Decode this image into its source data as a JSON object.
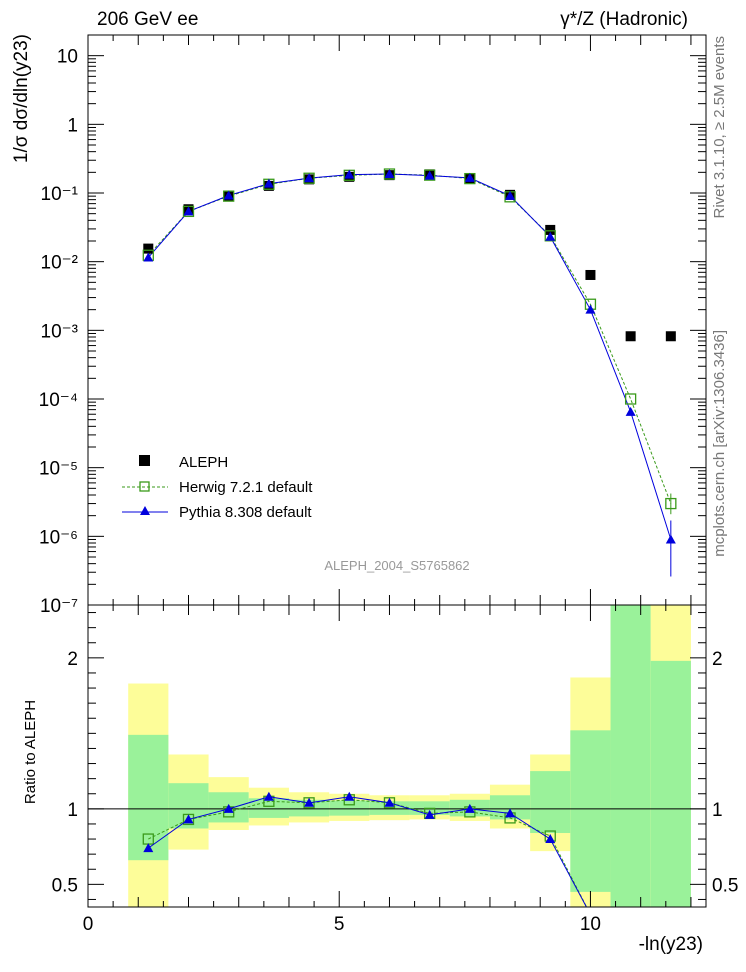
{
  "header": {
    "left": "206 GeV ee",
    "right": "γ*/Z (Hadronic)"
  },
  "side": {
    "top": "Rivet 3.1.10, ≥ 2.5M events",
    "bottom": "mcplots.cern.ch [arXiv:1306.3436]"
  },
  "watermark": "ALEPH_2004_S5765862",
  "chart_data": [
    {
      "type": "scatter",
      "title": "",
      "ylabel": "1/σ  dσ/dln(y23)",
      "xlabel": "-ln(y23)",
      "xlim": [
        0,
        12.3
      ],
      "ylim": [
        1e-07,
        20
      ],
      "yscale": "log",
      "y_tick_labels": [
        "10⁻⁷",
        "10⁻⁶",
        "10⁻⁵",
        "10⁻⁴",
        "10⁻³",
        "10⁻²",
        "10⁻¹",
        "1",
        "10"
      ],
      "legend_position": "lower-left",
      "x": [
        1.2,
        2.0,
        2.8,
        3.6,
        4.4,
        5.2,
        6.0,
        6.8,
        7.6,
        8.4,
        9.2,
        10.0,
        10.8,
        11.6
      ],
      "series": [
        {
          "name": "ALEPH",
          "marker": "filled-square",
          "color": "#000000",
          "values": [
            0.0155,
            0.058,
            0.092,
            0.127,
            0.158,
            0.172,
            0.182,
            0.187,
            0.165,
            0.094,
            0.029,
            0.0064,
            0.00082,
            0.00082
          ]
        },
        {
          "name": "Herwig 7.2.1 default",
          "marker": "open-square",
          "line": "dashed",
          "color": "#3a9a1a",
          "values": [
            0.0124,
            0.054,
            0.09,
            0.134,
            0.164,
            0.181,
            0.189,
            0.182,
            0.162,
            0.088,
            0.0238,
            0.0024,
            0.0001,
            3e-06
          ]
        },
        {
          "name": "Pythia 8.308 default",
          "marker": "filled-triangle",
          "line": "solid",
          "color": "#0000dd",
          "values": [
            0.0115,
            0.054,
            0.092,
            0.137,
            0.165,
            0.185,
            0.189,
            0.179,
            0.166,
            0.091,
            0.0231,
            0.002,
            6.5e-05,
            9e-07
          ]
        }
      ]
    },
    {
      "type": "line",
      "ylabel": "Ratio to ALEPH",
      "xlabel": "-ln(y23)",
      "xlim": [
        0,
        12.3
      ],
      "ylim": [
        0.35,
        2.35
      ],
      "x_tick_labels": [
        "0",
        "5",
        "10"
      ],
      "y_tick_labels": [
        "0.5",
        "1",
        "2"
      ],
      "bands": {
        "edges": [
          0.8,
          1.6,
          2.4,
          3.2,
          4.0,
          4.8,
          5.6,
          6.4,
          7.2,
          8.0,
          8.8,
          9.6,
          10.4,
          11.2,
          12.0
        ],
        "inner": [
          [
            0.66,
            1.49
          ],
          [
            0.87,
            1.17
          ],
          [
            0.91,
            1.11
          ],
          [
            0.94,
            1.07
          ],
          [
            0.95,
            1.06
          ],
          [
            0.955,
            1.055
          ],
          [
            0.96,
            1.05
          ],
          [
            0.96,
            1.05
          ],
          [
            0.95,
            1.06
          ],
          [
            0.93,
            1.09
          ],
          [
            0.84,
            1.25
          ],
          [
            0.45,
            1.52
          ],
          [
            0.3,
            2.4
          ],
          [
            0.3,
            1.98
          ]
        ],
        "outer": [
          [
            0.3,
            1.83
          ],
          [
            0.73,
            1.36
          ],
          [
            0.86,
            1.21
          ],
          [
            0.89,
            1.14
          ],
          [
            0.91,
            1.11
          ],
          [
            0.92,
            1.1
          ],
          [
            0.925,
            1.09
          ],
          [
            0.93,
            1.09
          ],
          [
            0.92,
            1.1
          ],
          [
            0.87,
            1.16
          ],
          [
            0.72,
            1.36
          ],
          [
            0.3,
            1.87
          ],
          [
            0.3,
            2.4
          ],
          [
            0.3,
            2.4
          ]
        ],
        "inner_color": "#9af29a",
        "outer_color": "#fdfd99"
      },
      "series": [
        {
          "name": "Herwig 7.2.1 default",
          "values": [
            0.8,
            0.93,
            0.98,
            1.05,
            1.04,
            1.06,
            1.04,
            0.97,
            0.98,
            0.94,
            0.82,
            0.3
          ]
        },
        {
          "name": "Pythia 8.308 default",
          "values": [
            0.74,
            0.93,
            1.0,
            1.08,
            1.04,
            1.08,
            1.04,
            0.96,
            1.0,
            0.97,
            0.8,
            0.3
          ]
        }
      ]
    }
  ]
}
